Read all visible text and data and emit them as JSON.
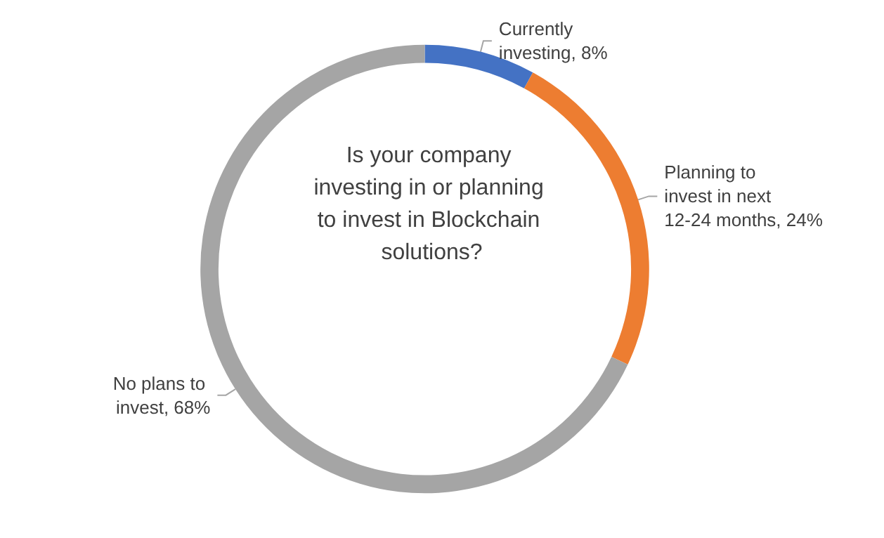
{
  "chart_data": {
    "type": "donut",
    "title": "Is your company investing in or planning to invest in Blockchain solutions?",
    "categories": [
      "Currently investing",
      "Planning to invest in next 12-24 months",
      "No plans to invest"
    ],
    "values": [
      8,
      24,
      68
    ],
    "colors": [
      "#4472c4",
      "#ed7d31",
      "#a5a5a5"
    ],
    "value_labels": [
      "8%",
      "24%",
      "68%"
    ],
    "legend": false
  }
}
